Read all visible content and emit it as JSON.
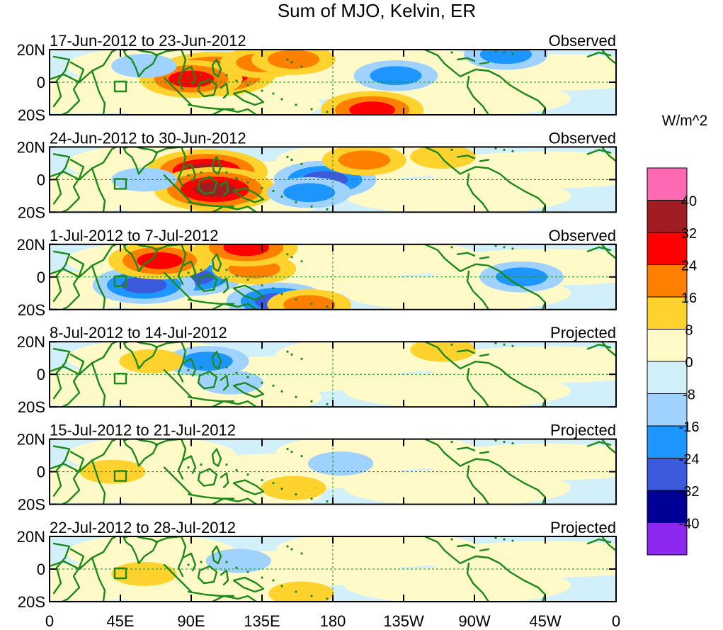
{
  "title": "Sum of MJO, Kelvin, ER",
  "units": "W/m^2",
  "lat_ticks": [
    "20N",
    "0",
    "20S"
  ],
  "lon_ticks": [
    "0",
    "45E",
    "90E",
    "135E",
    "180",
    "135W",
    "90W",
    "45W",
    "0"
  ],
  "colorbar": {
    "labels": [
      "40",
      "32",
      "24",
      "16",
      "8",
      "0",
      "-8",
      "-16",
      "-24",
      "-32",
      "-40"
    ],
    "colors": [
      "#ff69b4",
      "#a01e23",
      "#ff0000",
      "#ff7f00",
      "#ffd22d",
      "#fffac8",
      "#d2f0fa",
      "#a0d2ff",
      "#1e96ff",
      "#3c5adc",
      "#000096",
      "#8c28f0"
    ]
  },
  "panels": [
    {
      "period": "17-Jun-2012 to 23-Jun-2012",
      "status": "Observed"
    },
    {
      "period": "24-Jun-2012 to 30-Jun-2012",
      "status": "Observed"
    },
    {
      "period": "1-Jul-2012 to 7-Jul-2012",
      "status": "Observed"
    },
    {
      "period": "8-Jul-2012 to 14-Jul-2012",
      "status": "Projected"
    },
    {
      "period": "15-Jul-2012 to 21-Jul-2012",
      "status": "Projected"
    },
    {
      "period": "22-Jul-2012 to 28-Jul-2012",
      "status": "Projected"
    }
  ],
  "chart_data": {
    "type": "heatmap",
    "title": "Sum of MJO, Kelvin, ER",
    "variable": "OLR anomaly (W/m^2)",
    "x_range": [
      "0",
      "0 (360)"
    ],
    "y_range": [
      "20S",
      "20N"
    ],
    "contour_levels": [
      -40,
      -32,
      -24,
      -16,
      -8,
      0,
      8,
      16,
      24,
      32,
      40
    ],
    "panels": [
      {
        "period": "17-Jun-2012 to 23-Jun-2012",
        "status": "Observed",
        "features": [
          {
            "lon": 105,
            "lat": 5,
            "value": 32
          },
          {
            "lon": 90,
            "lat": 2,
            "value": 24
          },
          {
            "lon": 135,
            "lat": 12,
            "value": 16
          },
          {
            "lon": 205,
            "lat": -17,
            "value": 24
          },
          {
            "lon": 155,
            "lat": 14,
            "value": 16
          },
          {
            "lon": 220,
            "lat": 4,
            "value": -16
          },
          {
            "lon": 60,
            "lat": 10,
            "value": -8
          },
          {
            "lon": 290,
            "lat": 17,
            "value": -16
          }
        ]
      },
      {
        "period": "24-Jun-2012 to 30-Jun-2012",
        "status": "Observed",
        "features": [
          {
            "lon": 100,
            "lat": 5,
            "value": 32
          },
          {
            "lon": 105,
            "lat": -6,
            "value": 32
          },
          {
            "lon": 175,
            "lat": 0,
            "value": -24
          },
          {
            "lon": 165,
            "lat": -8,
            "value": -16
          },
          {
            "lon": 200,
            "lat": 12,
            "value": 16
          },
          {
            "lon": 60,
            "lat": 0,
            "value": -8
          },
          {
            "lon": 250,
            "lat": 14,
            "value": 8
          }
        ]
      },
      {
        "period": "1-Jul-2012 to 7-Jul-2012",
        "status": "Observed",
        "features": [
          {
            "lon": 90,
            "lat": 0,
            "value": -24
          },
          {
            "lon": 60,
            "lat": -5,
            "value": -24
          },
          {
            "lon": 145,
            "lat": -15,
            "value": -24
          },
          {
            "lon": 130,
            "lat": 5,
            "value": 16
          },
          {
            "lon": 70,
            "lat": 10,
            "value": 24
          },
          {
            "lon": 125,
            "lat": 18,
            "value": 24
          },
          {
            "lon": 165,
            "lat": -17,
            "value": 16
          },
          {
            "lon": 300,
            "lat": 0,
            "value": -16
          }
        ]
      },
      {
        "period": "8-Jul-2012 to 14-Jul-2012",
        "status": "Projected",
        "features": [
          {
            "lon": 100,
            "lat": 8,
            "value": -16
          },
          {
            "lon": 115,
            "lat": -5,
            "value": -8
          },
          {
            "lon": 65,
            "lat": 8,
            "value": 8
          },
          {
            "lon": 250,
            "lat": 15,
            "value": 8
          }
        ]
      },
      {
        "period": "15-Jul-2012 to 21-Jul-2012",
        "status": "Projected",
        "features": [
          {
            "lon": 155,
            "lat": -10,
            "value": 8
          },
          {
            "lon": 185,
            "lat": 5,
            "value": -8
          },
          {
            "lon": 40,
            "lat": 0,
            "value": 8
          }
        ]
      },
      {
        "period": "22-Jul-2012 to 28-Jul-2012",
        "status": "Projected",
        "features": [
          {
            "lon": 60,
            "lat": -3,
            "value": 8
          },
          {
            "lon": 160,
            "lat": -15,
            "value": 8
          },
          {
            "lon": 120,
            "lat": 5,
            "value": -8
          }
        ]
      }
    ]
  }
}
